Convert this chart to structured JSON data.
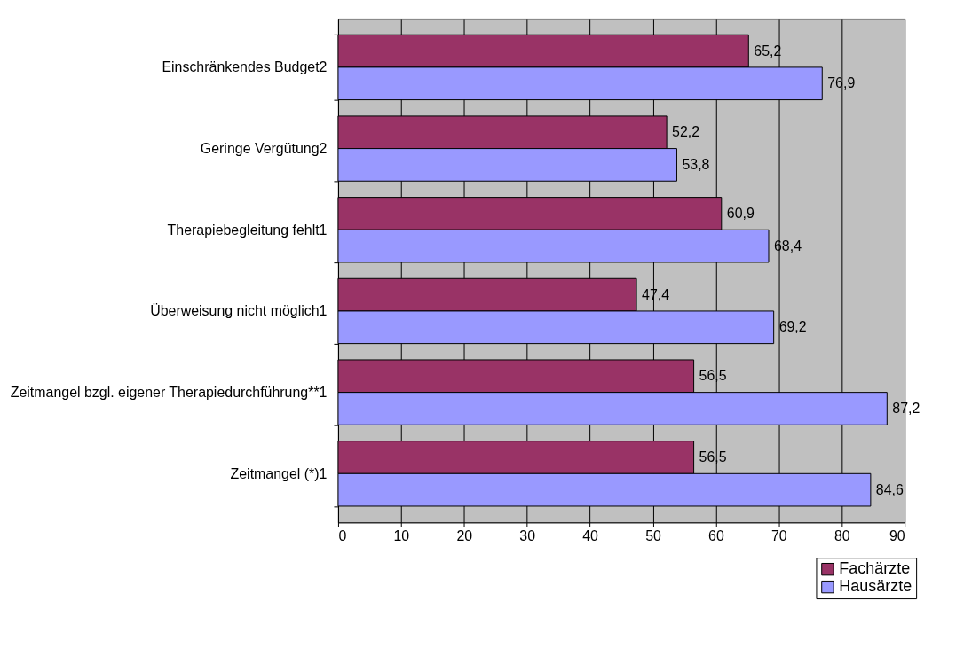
{
  "chart_data": {
    "type": "bar",
    "orientation": "horizontal",
    "categories": [
      "Einschränkendes Budget2",
      "Geringe Vergütung2",
      "Therapiebegleitung fehlt1",
      "Überweisung nicht möglich1",
      "Zeitmangel bzgl. eigener Therapiedurchführung**1",
      "Zeitmangel (*)1"
    ],
    "series": [
      {
        "name": "Fachärzte",
        "color": "#993366",
        "values": [
          65.2,
          52.2,
          60.9,
          47.4,
          56.5,
          56.5
        ],
        "value_labels": [
          "65,2",
          "52,2",
          "60,9",
          "47,4",
          "56,5",
          "56,5"
        ]
      },
      {
        "name": "Hausärzte",
        "color": "#9999ff",
        "values": [
          76.9,
          53.8,
          68.4,
          69.2,
          87.2,
          84.6
        ],
        "value_labels": [
          "76,9",
          "53,8",
          "68,4",
          "69,2",
          "87,2",
          "84,6"
        ]
      }
    ],
    "xlim": [
      0,
      90
    ],
    "xticks": [
      0,
      10,
      20,
      30,
      40,
      50,
      60,
      70,
      80,
      90
    ],
    "grid": "x",
    "legend": "bottom right"
  }
}
